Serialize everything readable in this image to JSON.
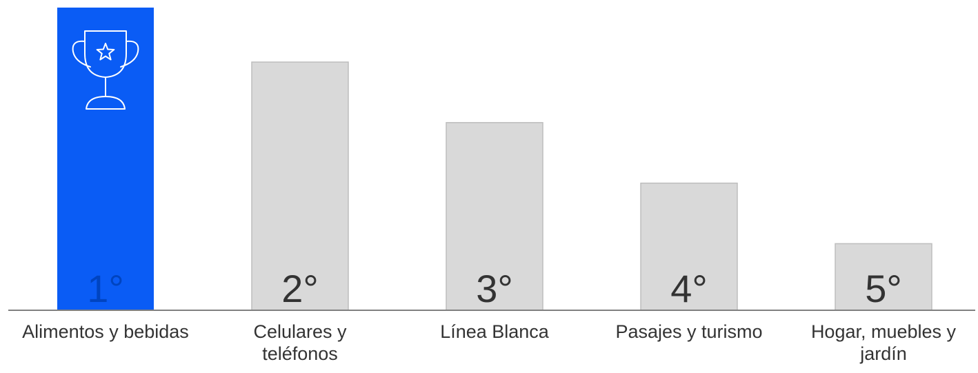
{
  "chart_data": {
    "type": "bar",
    "categories": [
      "Alimentos y bebidas",
      "Celulares y teléfonos",
      "Línea Blanca",
      "Pasajes y turismo",
      "Hogar, muebles y jardín"
    ],
    "values": [
      5,
      4.1,
      3.1,
      2.1,
      1.1
    ],
    "rank_labels": [
      "1°",
      "2°",
      "3°",
      "4°",
      "5°"
    ],
    "ylim": [
      0,
      5
    ],
    "highlight_index": 0,
    "highlight_icon": "trophy-star-icon",
    "colors": {
      "highlight": "#0a5cf5",
      "bar": "#d9d9d9",
      "bar_border": "#bdbdbd",
      "axis": "#808080",
      "rank_text_highlight": "#0044c0",
      "rank_text": "#333333",
      "label_text": "#333333"
    },
    "grid": false,
    "legend": "none"
  }
}
